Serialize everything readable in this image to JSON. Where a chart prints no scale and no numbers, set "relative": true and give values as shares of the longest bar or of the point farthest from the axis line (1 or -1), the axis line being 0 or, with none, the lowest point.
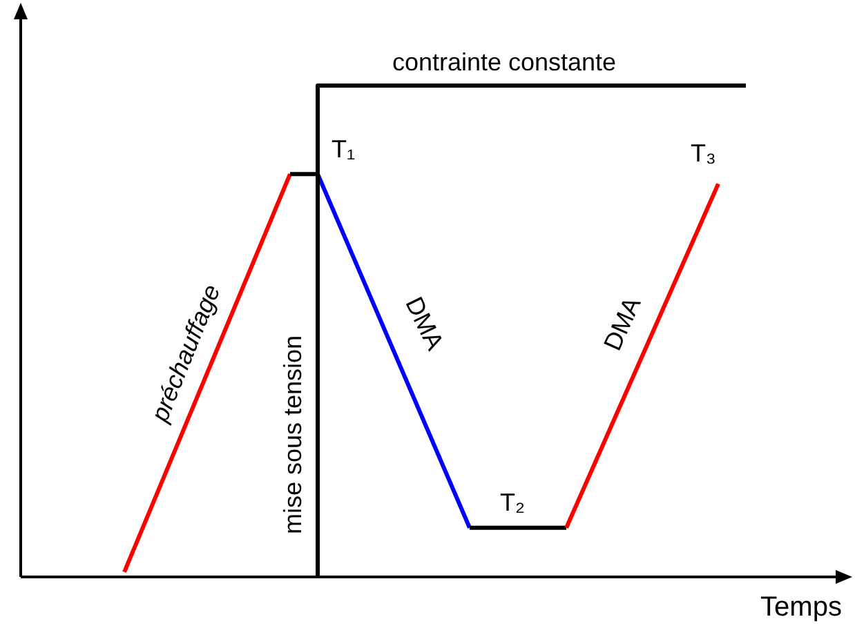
{
  "chart_data": {
    "type": "line",
    "relative": true,
    "xlabel": "Temps",
    "categories": [
      null,
      null,
      null,
      null,
      null,
      null,
      null,
      null,
      null,
      null,
      null,
      null,
      null,
      null,
      null,
      null,
      null,
      null,
      null,
      null,
      null,
      null,
      null,
      null,
      null,
      null,
      null,
      null,
      null,
      null,
      null,
      null,
      null,
      null,
      null,
      null,
      null,
      null,
      null,
      null,
      null,
      null,
      null,
      null,
      null,
      null
    ],
    "series": [
      {
        "color": "#ff0000",
        "values": [
          0.01,
          null,
          null,
          null,
          null,
          null,
          null,
          null,
          null,
          null,
          null,
          null,
          0.82,
          null,
          null,
          null,
          null,
          null,
          null,
          null,
          null,
          null,
          null,
          null,
          null,
          null,
          null,
          null,
          null,
          null,
          null,
          null,
          null,
          null,
          null,
          null,
          null,
          null,
          null,
          null,
          null,
          null,
          null,
          null,
          null,
          null
        ]
      },
      {
        "color": "#000000",
        "values": [
          null,
          null,
          null,
          null,
          null,
          null,
          null,
          null,
          null,
          null,
          null,
          null,
          0.82,
          null,
          0.82,
          null,
          null,
          null,
          null,
          null,
          null,
          null,
          null,
          null,
          null,
          null,
          null,
          null,
          null,
          null,
          null,
          null,
          null,
          null,
          null,
          null,
          null,
          null,
          null,
          null,
          null,
          null,
          null,
          null,
          null,
          null
        ]
      },
      {
        "color": "#0000ff",
        "values": [
          null,
          null,
          null,
          null,
          null,
          null,
          null,
          null,
          null,
          null,
          null,
          null,
          null,
          null,
          0.82,
          null,
          null,
          null,
          null,
          null,
          null,
          null,
          null,
          null,
          null,
          0.1,
          null,
          null,
          null,
          null,
          null,
          null,
          null,
          null,
          null,
          null,
          null,
          null,
          null,
          null,
          null,
          null,
          null,
          null,
          null,
          null
        ]
      },
      {
        "color": "#000000",
        "values": [
          null,
          null,
          null,
          null,
          null,
          null,
          null,
          null,
          null,
          null,
          null,
          null,
          null,
          null,
          null,
          null,
          null,
          null,
          null,
          null,
          null,
          null,
          null,
          null,
          null,
          0.1,
          null,
          null,
          null,
          null,
          null,
          null,
          0.1,
          null,
          null,
          null,
          null,
          null,
          null,
          null,
          null,
          null,
          null,
          null,
          null,
          null
        ]
      },
      {
        "color": "#ff0000",
        "values": [
          null,
          null,
          null,
          null,
          null,
          null,
          null,
          null,
          null,
          null,
          null,
          null,
          null,
          null,
          null,
          null,
          null,
          null,
          null,
          null,
          null,
          null,
          null,
          null,
          null,
          null,
          null,
          null,
          null,
          null,
          null,
          null,
          0.1,
          null,
          null,
          null,
          null,
          null,
          null,
          null,
          null,
          null,
          null,
          0.8,
          null,
          null
        ]
      },
      {
        "type": "step",
        "color": "#000000",
        "values": [
          null,
          null,
          null,
          null,
          null,
          null,
          null,
          null,
          null,
          null,
          null,
          null,
          null,
          null,
          0,
          1,
          1,
          1,
          1,
          1,
          1,
          1,
          1,
          1,
          1,
          1,
          1,
          1,
          1,
          1,
          1,
          1,
          1,
          1,
          1,
          1,
          1,
          1,
          1,
          1,
          1,
          1,
          1,
          1,
          1,
          1
        ]
      }
    ],
    "annotations": [
      "contrainte constante",
      "T₁",
      "T₂",
      "T₃",
      "préchauffage",
      "mise sous tension",
      "DMA",
      "DMA"
    ],
    "marker": "none",
    "line_style": "solid"
  }
}
